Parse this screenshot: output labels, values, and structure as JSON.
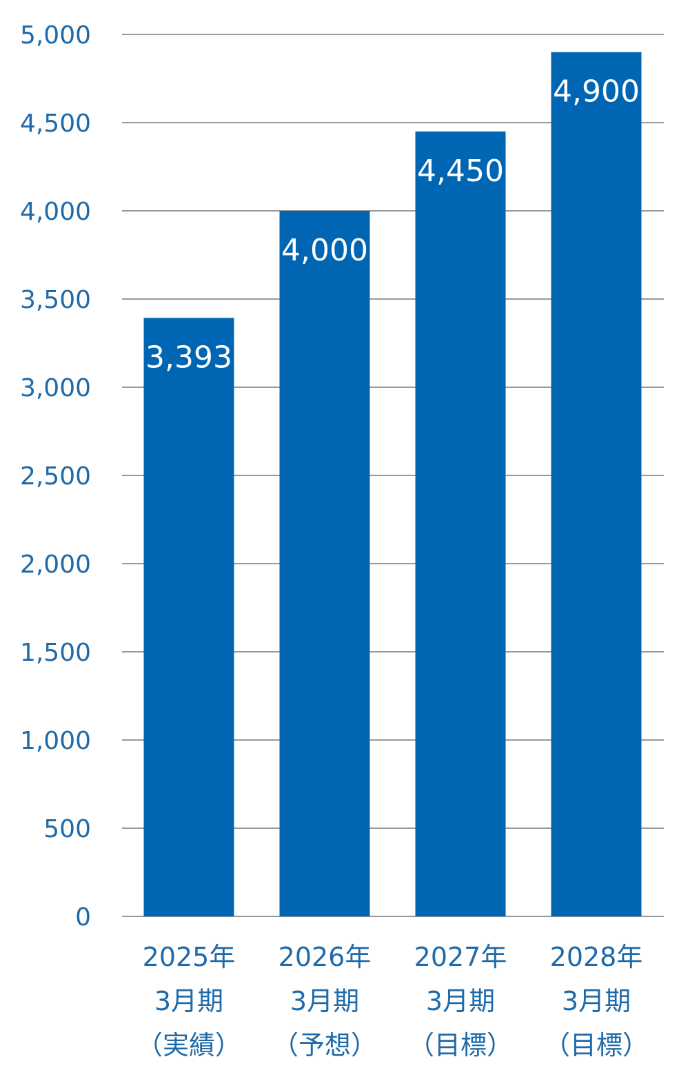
{
  "colors": {
    "bar": "#0066b3",
    "grid": "#999999",
    "axis_text": "#1f6aa8",
    "value_text": "#ffffff"
  },
  "chart_data": {
    "type": "bar",
    "categories": [
      [
        "2025年",
        "3月期",
        "（実績）"
      ],
      [
        "2026年",
        "3月期",
        "（予想）"
      ],
      [
        "2027年",
        "3月期",
        "（目標）"
      ],
      [
        "2028年",
        "3月期",
        "（目標）"
      ]
    ],
    "values": [
      3393,
      4000,
      4450,
      4900
    ],
    "value_labels": [
      "3,393",
      "4,000",
      "4,450",
      "4,900"
    ],
    "yticks": [
      0,
      500,
      1000,
      1500,
      2000,
      2500,
      3000,
      3500,
      4000,
      4500,
      5000
    ],
    "ytick_labels": [
      "0",
      "500",
      "1,000",
      "1,500",
      "2,000",
      "2,500",
      "3,000",
      "3,500",
      "4,000",
      "4,500",
      "5,000"
    ],
    "ylim": [
      0,
      5000
    ],
    "grid": true,
    "legend": "none",
    "title": "",
    "xlabel": "",
    "ylabel": ""
  }
}
